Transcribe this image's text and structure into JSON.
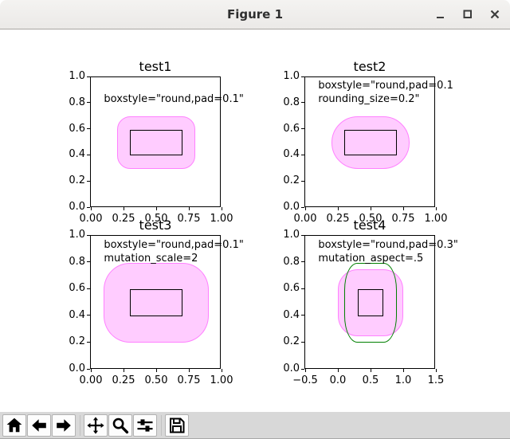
{
  "window": {
    "title": "Figure 1",
    "controls": [
      {
        "name": "minimize",
        "icon": "minimize-icon"
      },
      {
        "name": "maximize",
        "icon": "maximize-icon"
      },
      {
        "name": "close",
        "icon": "close-icon"
      }
    ]
  },
  "toolbar": {
    "buttons": [
      {
        "name": "home",
        "icon": "home-icon"
      },
      {
        "name": "back",
        "icon": "back-arrow-icon"
      },
      {
        "name": "forward",
        "icon": "forward-arrow-icon"
      },
      {
        "name": "pan",
        "icon": "pan-arrows-icon"
      },
      {
        "name": "zoom",
        "icon": "zoom-magnifier-icon"
      },
      {
        "name": "configure-subplots",
        "icon": "sliders-icon"
      },
      {
        "name": "save",
        "icon": "floppy-disk-icon"
      }
    ],
    "separators_after": [
      2,
      5
    ]
  },
  "colors": {
    "fancybox_fill": "#FFCCFF",
    "fancybox_edge": "#FF80FF",
    "compare_edge": "#007F00",
    "rect_edge": "#000000"
  },
  "chart_data": [
    {
      "type": "patches",
      "name": "test1",
      "title": "test1",
      "annotation_lines": [
        "boxstyle=\"round,pad=0.1\""
      ],
      "xlim": [
        0,
        1
      ],
      "ylim": [
        0,
        1
      ],
      "xtick_values": [
        0,
        0.25,
        0.5,
        0.75,
        1
      ],
      "xtick_labels": [
        "0.00",
        "0.25",
        "0.50",
        "0.75",
        "1.00"
      ],
      "ytick_values": [
        0,
        0.2,
        0.4,
        0.6,
        0.8,
        1
      ],
      "ytick_labels": [
        "0.0",
        "0.2",
        "0.4",
        "0.6",
        "0.8",
        "1.0"
      ],
      "patches": [
        {
          "kind": "fancybox",
          "x0": 0.2,
          "y0": 0.3,
          "x1": 0.8,
          "y1": 0.7,
          "rx": 0.1,
          "ry": 0.1,
          "fill": "#FFCCFF",
          "edge": "#FF80FF"
        },
        {
          "kind": "rect",
          "x0": 0.3,
          "y0": 0.4,
          "x1": 0.7,
          "y1": 0.6,
          "fill": null,
          "edge": "#000000"
        }
      ]
    },
    {
      "type": "patches",
      "name": "test2",
      "title": "test2",
      "annotation_lines": [
        "boxstyle=\"round,pad=0.1",
        "rounding_size=0.2\""
      ],
      "xlim": [
        0,
        1
      ],
      "ylim": [
        0,
        1
      ],
      "xtick_values": [
        0,
        0.25,
        0.5,
        0.75,
        1
      ],
      "xtick_labels": [
        "0.00",
        "0.25",
        "0.50",
        "0.75",
        "1.00"
      ],
      "ytick_values": [
        0,
        0.2,
        0.4,
        0.6,
        0.8,
        1
      ],
      "ytick_labels": [
        "0.0",
        "0.2",
        "0.4",
        "0.6",
        "0.8",
        "1.0"
      ],
      "patches": [
        {
          "kind": "fancybox",
          "x0": 0.2,
          "y0": 0.3,
          "x1": 0.8,
          "y1": 0.7,
          "rx": 0.2,
          "ry": 0.2,
          "fill": "#FFCCFF",
          "edge": "#FF80FF"
        },
        {
          "kind": "rect",
          "x0": 0.3,
          "y0": 0.4,
          "x1": 0.7,
          "y1": 0.6,
          "fill": null,
          "edge": "#000000"
        }
      ]
    },
    {
      "type": "patches",
      "name": "test3",
      "title": "test3",
      "annotation_lines": [
        "boxstyle=\"round,pad=0.1\"",
        "mutation_scale=2"
      ],
      "xlim": [
        0,
        1
      ],
      "ylim": [
        0,
        1
      ],
      "xtick_values": [
        0,
        0.25,
        0.5,
        0.75,
        1
      ],
      "xtick_labels": [
        "0.00",
        "0.25",
        "0.50",
        "0.75",
        "1.00"
      ],
      "ytick_values": [
        0,
        0.2,
        0.4,
        0.6,
        0.8,
        1
      ],
      "ytick_labels": [
        "0.0",
        "0.2",
        "0.4",
        "0.6",
        "0.8",
        "1.0"
      ],
      "patches": [
        {
          "kind": "fancybox",
          "x0": 0.1,
          "y0": 0.2,
          "x1": 0.9,
          "y1": 0.8,
          "rx": 0.2,
          "ry": 0.2,
          "fill": "#FFCCFF",
          "edge": "#FF80FF"
        },
        {
          "kind": "rect",
          "x0": 0.3,
          "y0": 0.4,
          "x1": 0.7,
          "y1": 0.6,
          "fill": null,
          "edge": "#000000"
        }
      ]
    },
    {
      "type": "patches",
      "name": "test4",
      "title": "test4",
      "annotation_lines": [
        "boxstyle=\"round,pad=0.3\"",
        "mutation_aspect=.5"
      ],
      "xlim": [
        -0.5,
        1.5
      ],
      "ylim": [
        0,
        1
      ],
      "xtick_values": [
        -0.5,
        0,
        0.5,
        1,
        1.5
      ],
      "xtick_labels": [
        "−0.5",
        "0.0",
        "0.5",
        "1.0",
        "1.5"
      ],
      "ytick_values": [
        0,
        0.2,
        0.4,
        0.6,
        0.8,
        1
      ],
      "ytick_labels": [
        "0.0",
        "0.2",
        "0.4",
        "0.6",
        "0.8",
        "1.0"
      ],
      "patches": [
        {
          "kind": "fancybox",
          "x0": 0.0,
          "y0": 0.25,
          "x1": 1.0,
          "y1": 0.75,
          "rx": 0.3,
          "ry": 0.15,
          "fill": "#FFCCFF",
          "edge": "#FF80FF"
        },
        {
          "kind": "rect",
          "x0": 0.3,
          "y0": 0.4,
          "x1": 0.7,
          "y1": 0.6,
          "fill": null,
          "edge": "#000000"
        },
        {
          "kind": "fancybox",
          "x0": 0.1,
          "y0": 0.2,
          "x1": 0.9,
          "y1": 0.8,
          "rx": 0.2,
          "ry": 0.2,
          "fill": null,
          "edge": "#007F00"
        }
      ]
    }
  ]
}
